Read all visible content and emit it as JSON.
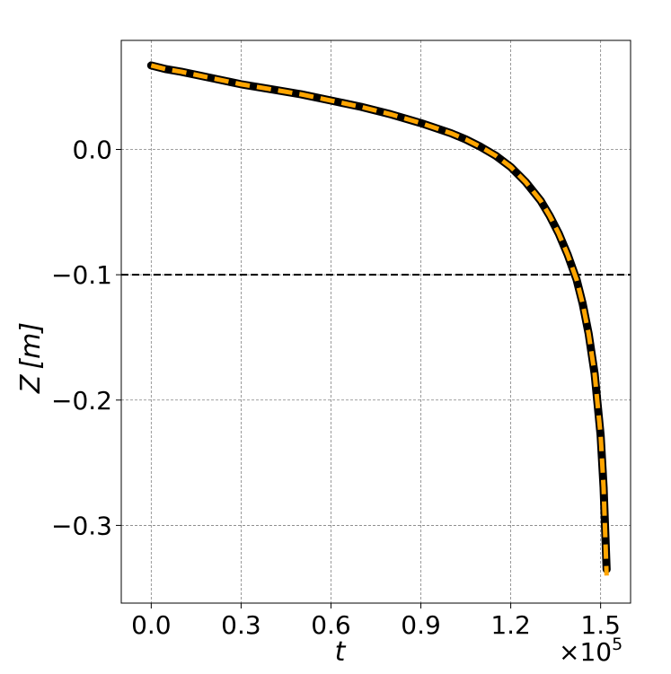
{
  "chart_data": {
    "type": "line",
    "title": "",
    "xlabel": "t",
    "ylabel": "Z [m]",
    "x_offset_text": "×10",
    "x_offset_exponent": "5",
    "xlim": [
      -0.1,
      1.6
    ],
    "ylim": [
      -0.362,
      0.087
    ],
    "xticks": [
      0.0,
      0.3,
      0.6,
      0.9,
      1.2,
      1.5
    ],
    "xtick_labels": [
      "0.0",
      "0.3",
      "0.6",
      "0.9",
      "1.2",
      "1.5"
    ],
    "yticks": [
      0.0,
      -0.1,
      -0.2,
      -0.3
    ],
    "ytick_labels": [
      "0.0",
      "−0.1",
      "−0.2",
      "−0.3"
    ],
    "grid": true,
    "reference_line": {
      "y": -0.1,
      "style": "dashed",
      "color": "#000000"
    },
    "series": [
      {
        "style": "solid",
        "color": "#000000",
        "x": [
          0.0,
          0.05,
          0.1,
          0.2,
          0.3,
          0.4,
          0.5,
          0.6,
          0.7,
          0.8,
          0.9,
          1.0,
          1.05,
          1.1,
          1.15,
          1.2,
          1.25,
          1.3,
          1.33,
          1.36,
          1.39,
          1.42,
          1.44,
          1.46,
          1.48,
          1.5,
          1.51,
          1.52
        ],
        "values": [
          0.067,
          0.064,
          0.062,
          0.057,
          0.052,
          0.048,
          0.044,
          0.039,
          0.034,
          0.028,
          0.021,
          0.013,
          0.008,
          0.002,
          -0.005,
          -0.014,
          -0.026,
          -0.041,
          -0.053,
          -0.067,
          -0.084,
          -0.104,
          -0.123,
          -0.147,
          -0.179,
          -0.228,
          -0.27,
          -0.335
        ]
      },
      {
        "style": "dashed",
        "color": "#FFA500",
        "x": [
          0.0,
          0.05,
          0.1,
          0.2,
          0.3,
          0.4,
          0.5,
          0.6,
          0.7,
          0.8,
          0.9,
          1.0,
          1.05,
          1.1,
          1.15,
          1.2,
          1.25,
          1.3,
          1.33,
          1.36,
          1.39,
          1.42,
          1.44,
          1.46,
          1.48,
          1.5,
          1.51,
          1.52
        ],
        "values": [
          0.067,
          0.064,
          0.062,
          0.057,
          0.052,
          0.048,
          0.044,
          0.039,
          0.034,
          0.028,
          0.021,
          0.013,
          0.008,
          0.002,
          -0.005,
          -0.014,
          -0.026,
          -0.041,
          -0.053,
          -0.067,
          -0.084,
          -0.104,
          -0.123,
          -0.147,
          -0.179,
          -0.228,
          -0.27,
          -0.34
        ]
      }
    ]
  }
}
